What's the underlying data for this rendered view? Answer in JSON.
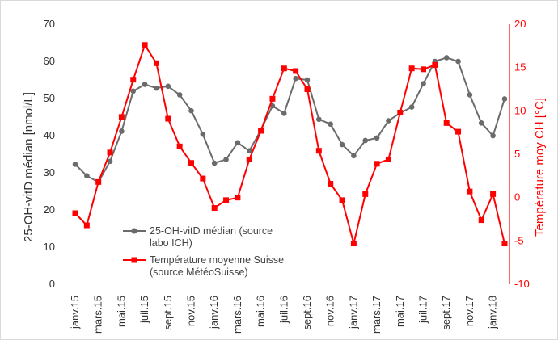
{
  "chart_data": {
    "type": "line",
    "title": "",
    "xlabel": "",
    "categories": [
      "janv.15",
      "févr.15",
      "mars.15",
      "avr.15",
      "mai.15",
      "juin.15",
      "juil.15",
      "août.15",
      "sept.15",
      "oct.15",
      "nov.15",
      "déc.15",
      "janv.16",
      "févr.16",
      "mars.16",
      "avr.16",
      "mai.16",
      "juin.16",
      "juil.16",
      "août.16",
      "sept.16",
      "oct.16",
      "nov.16",
      "déc.16",
      "janv.17",
      "févr.17",
      "mars.17",
      "avr.17",
      "mai.17",
      "juin.17",
      "juil.17",
      "août.17",
      "sept.17",
      "oct.17",
      "nov.17",
      "déc.17",
      "janv.18",
      "févr.18"
    ],
    "x_tick_labels": [
      "janv.15",
      "mars.15",
      "mai.15",
      "juil.15",
      "sept.15",
      "nov.15",
      "janv.16",
      "mars.16",
      "mai.16",
      "juil.16",
      "sept.16",
      "nov.16",
      "janv.17",
      "mars.17",
      "mai.17",
      "juil.17",
      "sept.17",
      "nov.17",
      "janv.18"
    ],
    "y_left": {
      "label": "25-OH-vitD médian [nmol/L]",
      "range": [
        0,
        70
      ],
      "ticks": [
        "0",
        "10",
        "20",
        "30",
        "40",
        "50",
        "60",
        "70"
      ],
      "color": "#333333"
    },
    "y_right": {
      "label": "Température moy CH [°C]",
      "range": [
        -10,
        20
      ],
      "ticks": [
        "-10",
        "-5",
        "0",
        "5",
        "10",
        "15",
        "20"
      ],
      "color": "#ff0000"
    },
    "grid": false,
    "legend_position": "lower-left",
    "series": [
      {
        "name": "25-OH-vitD médian (source labo ICH)",
        "axis": "left",
        "color": "#6b6b6b",
        "marker": "circle",
        "values": [
          32.3,
          29.2,
          27.5,
          33.1,
          41.2,
          52.0,
          53.8,
          52.8,
          53.3,
          51.0,
          46.7,
          40.4,
          32.6,
          33.6,
          38.1,
          35.9,
          41.5,
          48.0,
          46.0,
          55.4,
          55.0,
          44.4,
          43.1,
          37.6,
          34.6,
          38.7,
          39.4,
          44.0,
          46.1,
          47.7,
          54.0,
          60.0,
          61.0,
          60.0,
          51.0,
          43.4,
          40.0,
          49.9
        ]
      },
      {
        "name": "Température moyenne Suisse (source MétéoSuisse)",
        "axis": "right",
        "color": "#ff0000",
        "marker": "square",
        "values": [
          -1.8,
          -3.2,
          1.8,
          5.2,
          9.3,
          13.6,
          17.6,
          15.5,
          9.1,
          5.9,
          4.0,
          2.2,
          -1.2,
          -0.3,
          0.0,
          4.4,
          7.7,
          11.4,
          14.9,
          14.6,
          12.5,
          5.4,
          1.6,
          -0.3,
          -5.3,
          0.4,
          3.9,
          4.4,
          9.8,
          14.9,
          14.8,
          15.3,
          8.6,
          7.6,
          0.7,
          -2.6,
          0.4,
          -5.3
        ]
      }
    ]
  }
}
